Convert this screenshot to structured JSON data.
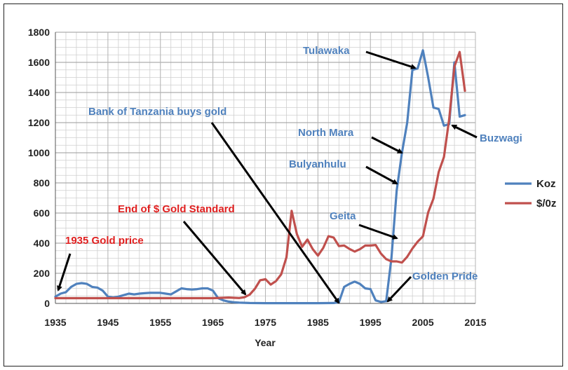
{
  "chart_data": {
    "type": "line",
    "title": "",
    "xlabel": "Year",
    "ylabel": "",
    "xlim": [
      1935,
      2015
    ],
    "ylim": [
      0,
      1800
    ],
    "x_ticks": [
      1935,
      1945,
      1955,
      1965,
      1975,
      1985,
      1995,
      2005,
      2015
    ],
    "y_ticks": [
      0,
      200,
      400,
      600,
      800,
      1000,
      1200,
      1400,
      1600,
      1800
    ],
    "grid": true,
    "legend_position": "right",
    "series": [
      {
        "name": "Koz",
        "color": "#4f81bd",
        "points": [
          [
            1935,
            45
          ],
          [
            1936,
            65
          ],
          [
            1937,
            75
          ],
          [
            1938,
            110
          ],
          [
            1939,
            130
          ],
          [
            1940,
            135
          ],
          [
            1941,
            130
          ],
          [
            1942,
            110
          ],
          [
            1943,
            105
          ],
          [
            1944,
            85
          ],
          [
            1945,
            45
          ],
          [
            1946,
            40
          ],
          [
            1947,
            45
          ],
          [
            1948,
            55
          ],
          [
            1949,
            65
          ],
          [
            1950,
            60
          ],
          [
            1951,
            65
          ],
          [
            1952,
            68
          ],
          [
            1953,
            70
          ],
          [
            1954,
            70
          ],
          [
            1955,
            70
          ],
          [
            1956,
            65
          ],
          [
            1957,
            60
          ],
          [
            1958,
            80
          ],
          [
            1959,
            100
          ],
          [
            1960,
            95
          ],
          [
            1961,
            92
          ],
          [
            1962,
            95
          ],
          [
            1963,
            100
          ],
          [
            1964,
            100
          ],
          [
            1965,
            85
          ],
          [
            1966,
            35
          ],
          [
            1967,
            20
          ],
          [
            1968,
            12
          ],
          [
            1969,
            8
          ],
          [
            1970,
            5
          ],
          [
            1972,
            3
          ],
          [
            1975,
            2
          ],
          [
            1980,
            2
          ],
          [
            1985,
            2
          ],
          [
            1988,
            3
          ],
          [
            1989,
            8
          ],
          [
            1990,
            110
          ],
          [
            1991,
            130
          ],
          [
            1992,
            145
          ],
          [
            1993,
            130
          ],
          [
            1994,
            100
          ],
          [
            1995,
            95
          ],
          [
            1996,
            20
          ],
          [
            1997,
            10
          ],
          [
            1998,
            15
          ],
          [
            1999,
            300
          ],
          [
            2000,
            750
          ],
          [
            2001,
            1000
          ],
          [
            2002,
            1200
          ],
          [
            2003,
            1550
          ],
          [
            2004,
            1560
          ],
          [
            2005,
            1680
          ],
          [
            2006,
            1500
          ],
          [
            2007,
            1300
          ],
          [
            2008,
            1290
          ],
          [
            2009,
            1180
          ],
          [
            2010,
            1190
          ],
          [
            2011,
            1600
          ],
          [
            2012,
            1240
          ],
          [
            2013,
            1250
          ]
        ]
      },
      {
        "name": "$/0z",
        "color": "#c0504d",
        "points": [
          [
            1935,
            35
          ],
          [
            1940,
            35
          ],
          [
            1945,
            35
          ],
          [
            1950,
            35
          ],
          [
            1955,
            35
          ],
          [
            1960,
            35
          ],
          [
            1965,
            35
          ],
          [
            1968,
            39
          ],
          [
            1970,
            36
          ],
          [
            1971,
            41
          ],
          [
            1972,
            58
          ],
          [
            1973,
            97
          ],
          [
            1974,
            154
          ],
          [
            1975,
            161
          ],
          [
            1976,
            125
          ],
          [
            1977,
            148
          ],
          [
            1978,
            193
          ],
          [
            1979,
            306
          ],
          [
            1980,
            615
          ],
          [
            1981,
            460
          ],
          [
            1982,
            376
          ],
          [
            1983,
            424
          ],
          [
            1984,
            361
          ],
          [
            1985,
            317
          ],
          [
            1986,
            368
          ],
          [
            1987,
            446
          ],
          [
            1988,
            437
          ],
          [
            1989,
            381
          ],
          [
            1990,
            384
          ],
          [
            1991,
            362
          ],
          [
            1992,
            344
          ],
          [
            1993,
            360
          ],
          [
            1994,
            384
          ],
          [
            1995,
            384
          ],
          [
            1996,
            388
          ],
          [
            1997,
            331
          ],
          [
            1998,
            294
          ],
          [
            1999,
            279
          ],
          [
            2000,
            279
          ],
          [
            2001,
            271
          ],
          [
            2002,
            310
          ],
          [
            2003,
            364
          ],
          [
            2004,
            410
          ],
          [
            2005,
            445
          ],
          [
            2006,
            604
          ],
          [
            2007,
            695
          ],
          [
            2008,
            872
          ],
          [
            2009,
            972
          ],
          [
            2010,
            1225
          ],
          [
            2011,
            1572
          ],
          [
            2012,
            1669
          ],
          [
            2013,
            1411
          ]
        ]
      }
    ],
    "annotations": [
      {
        "text": "1935 Gold price",
        "color": "#e02020"
      },
      {
        "text": "End of $ Gold Standard",
        "color": "#e02020"
      },
      {
        "text": "Bank of Tanzania buys gold",
        "color": "#4f81bd"
      },
      {
        "text": "Tulawaka",
        "color": "#4f81bd"
      },
      {
        "text": "North Mara",
        "color": "#4f81bd"
      },
      {
        "text": "Bulyanhulu",
        "color": "#4f81bd"
      },
      {
        "text": "Geita",
        "color": "#4f81bd"
      },
      {
        "text": "Golden Pride",
        "color": "#4f81bd"
      },
      {
        "text": "Buzwagi",
        "color": "#4f81bd"
      }
    ]
  }
}
